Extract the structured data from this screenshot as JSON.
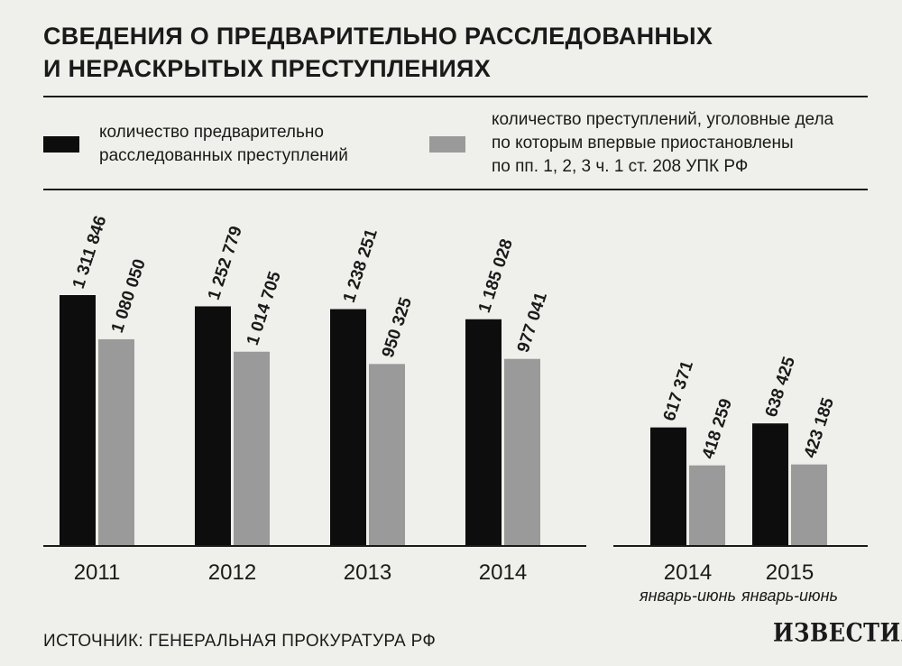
{
  "title_line1": "СВЕДЕНИЯ О ПРЕДВАРИТЕЛЬНО РАССЛЕДОВАННЫХ",
  "title_line2": "И НЕРАСКРЫТЫХ ПРЕСТУПЛЕНИЯХ",
  "legend": {
    "series1": [
      "количество предварительно",
      "расследованных преступлений"
    ],
    "series2": [
      "количество преступлений, уголовные дела",
      "по которым впервые приостановлены",
      "по пп. 1, 2, 3 ч. 1 ст. 208 УПК РФ"
    ]
  },
  "colors": {
    "series1": "#0d0d0d",
    "series2": "#9a9a9a",
    "background": "#efefeb"
  },
  "chart_data": [
    {
      "type": "bar",
      "categories": [
        "2011",
        "2012",
        "2013",
        "2014"
      ],
      "series": [
        {
          "values": [
            1311846,
            1252779,
            1238251,
            1185028
          ],
          "labels": [
            "1 311 846",
            "1 252 779",
            "1 238 251",
            "1 185 028"
          ]
        },
        {
          "values": [
            1080050,
            1014705,
            950325,
            977041
          ],
          "labels": [
            "1 080 050",
            "1 014 705",
            "950 325",
            "977 041"
          ]
        }
      ]
    },
    {
      "type": "bar",
      "categories": [
        "2014",
        "2015"
      ],
      "category_sublabels": [
        "январь-июнь",
        "январь-июнь"
      ],
      "series": [
        {
          "values": [
            617371,
            638425
          ],
          "labels": [
            "617 371",
            "638 425"
          ]
        },
        {
          "values": [
            418259,
            423185
          ],
          "labels": [
            "418 259",
            "423 185"
          ]
        }
      ]
    }
  ],
  "source": "ИСТОЧНИК: ГЕНЕРАЛЬНАЯ ПРОКУРАТУРА РФ",
  "logo_text": "ИЗВЕСТИЯ"
}
